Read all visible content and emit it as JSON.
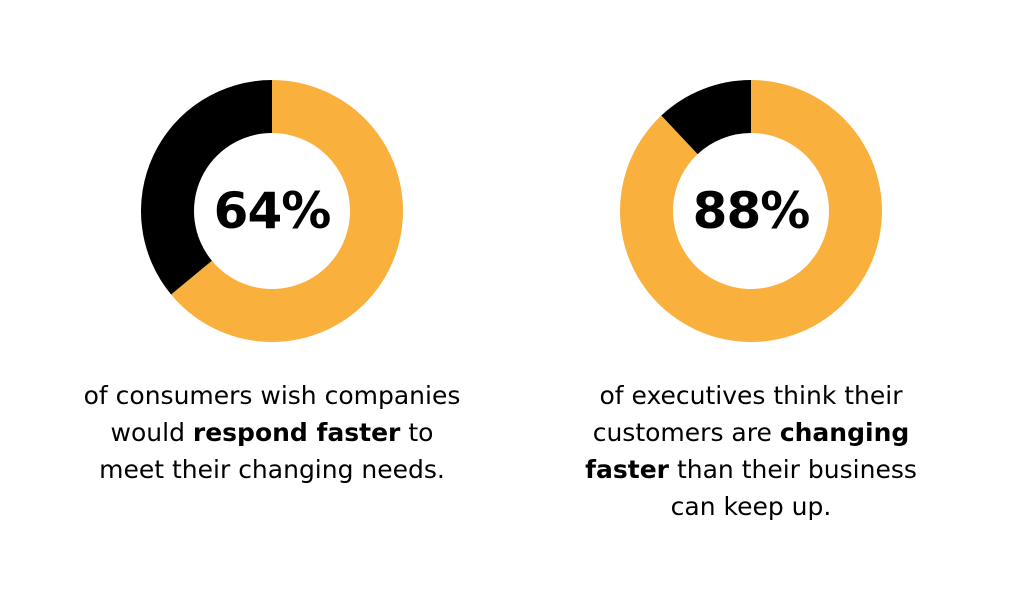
{
  "colors": {
    "highlight": "#F9B03D",
    "remainder": "#000000",
    "background": "#FFFFFF"
  },
  "chart_data": [
    {
      "type": "pie",
      "variant": "donut",
      "center_label": "64%",
      "slices": [
        {
          "value": 64,
          "color": "#F9B03D"
        },
        {
          "value": 36,
          "color": "#000000"
        }
      ],
      "caption": {
        "before": "of consumers wish companies would",
        "bold": "respond faster",
        "after": "to meet their changing needs."
      }
    },
    {
      "type": "pie",
      "variant": "donut",
      "center_label": "88%",
      "slices": [
        {
          "value": 88,
          "color": "#F9B03D"
        },
        {
          "value": 12,
          "color": "#000000"
        }
      ],
      "caption": {
        "before": "of executives think their customers are",
        "bold": "changing faster",
        "after": "than their business can keep up."
      }
    }
  ]
}
